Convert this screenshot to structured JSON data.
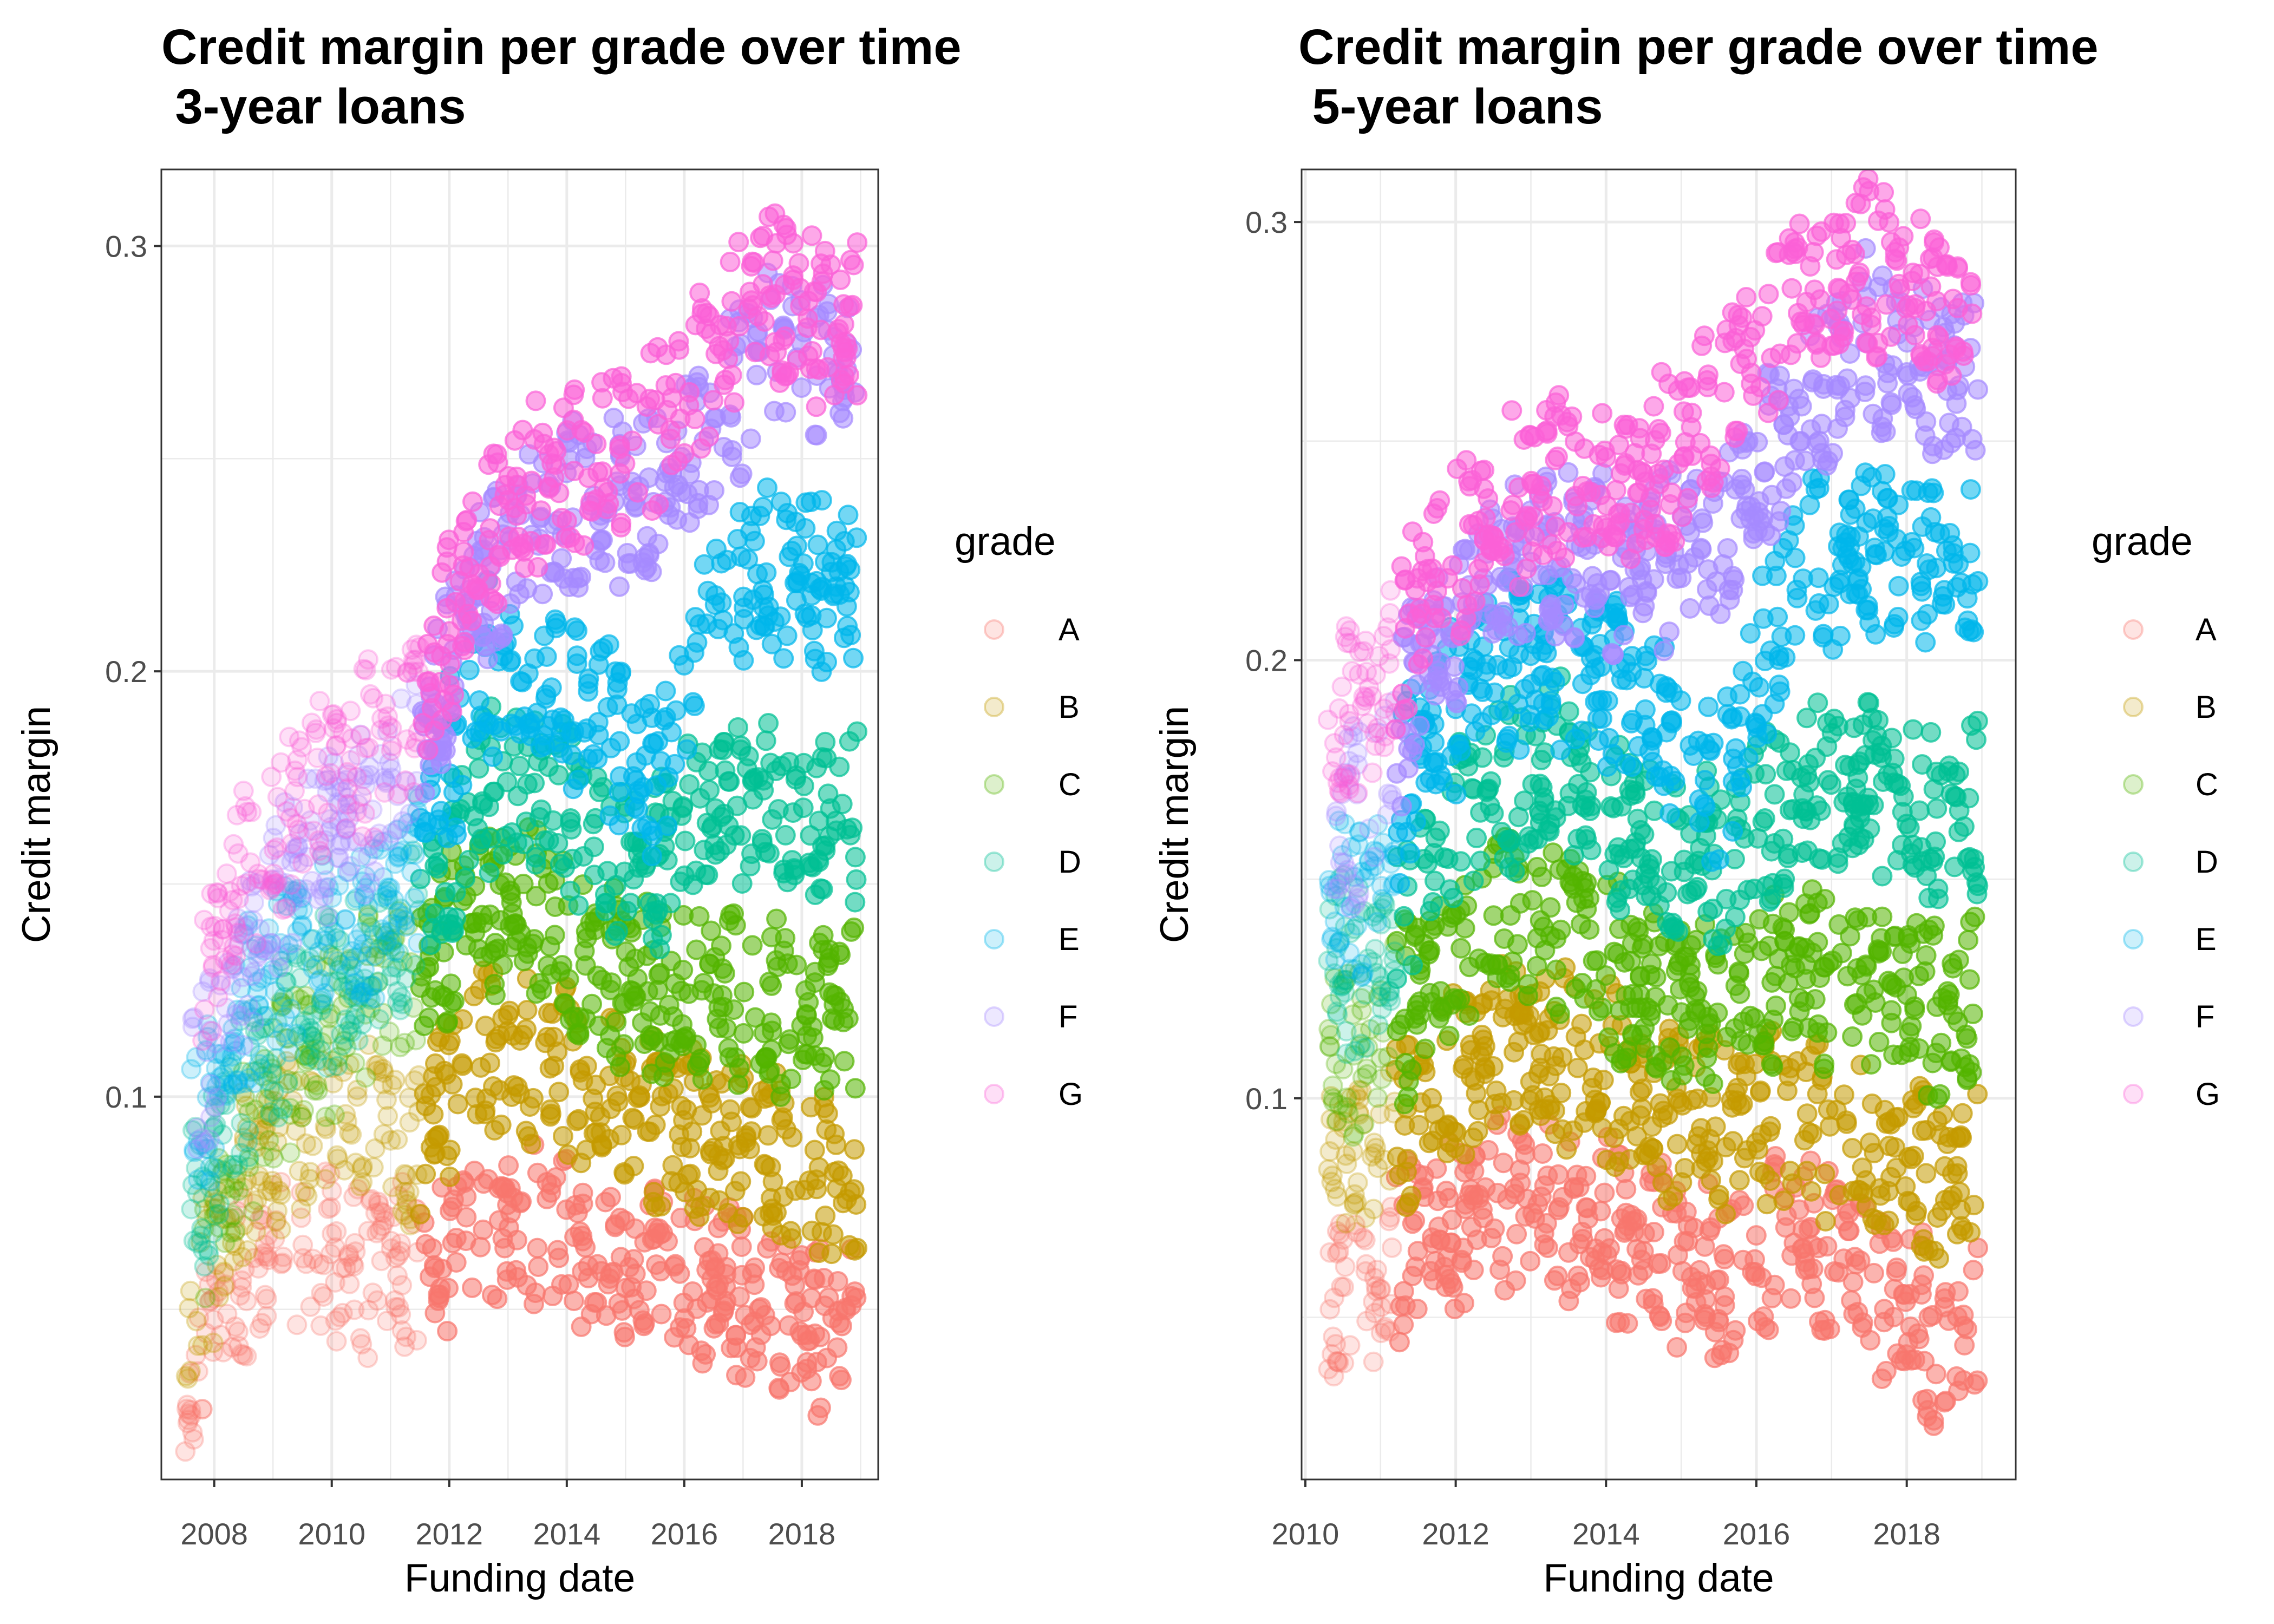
{
  "chart_data": [
    {
      "type": "scatter",
      "title": "Credit margin per grade over time\n 3-year loans",
      "xlabel": "Funding date",
      "ylabel": "Credit margin",
      "xlim": [
        2007.1,
        2019.3
      ],
      "ylim": [
        0.01,
        0.318
      ],
      "x_ticks": [
        2008,
        2010,
        2012,
        2014,
        2016,
        2018
      ],
      "y_ticks": [
        0.1,
        0.2,
        0.3
      ],
      "grid": true,
      "legend_title": "grade",
      "legend_position": "right",
      "series": [
        {
          "name": "A",
          "color": "#F8766D",
          "approx_trend": [
            [
              2007.5,
              0.03
            ],
            [
              2008.5,
              0.06
            ],
            [
              2009.5,
              0.065
            ],
            [
              2010.5,
              0.06
            ],
            [
              2011.5,
              0.06
            ],
            [
              2012.5,
              0.07
            ],
            [
              2013.5,
              0.07
            ],
            [
              2014.5,
              0.06
            ],
            [
              2015.5,
              0.058
            ],
            [
              2016.5,
              0.058
            ],
            [
              2017.5,
              0.05
            ],
            [
              2018.5,
              0.045
            ]
          ]
        },
        {
          "name": "B",
          "color": "#C49A00",
          "approx_trend": [
            [
              2007.5,
              0.045
            ],
            [
              2008.5,
              0.08
            ],
            [
              2009.5,
              0.09
            ],
            [
              2010.5,
              0.095
            ],
            [
              2011.5,
              0.09
            ],
            [
              2012.5,
              0.11
            ],
            [
              2013.5,
              0.11
            ],
            [
              2014.5,
              0.1
            ],
            [
              2015.5,
              0.095
            ],
            [
              2016.5,
              0.09
            ],
            [
              2017.5,
              0.085
            ],
            [
              2018.5,
              0.08
            ]
          ]
        },
        {
          "name": "C",
          "color": "#53B400",
          "approx_trend": [
            [
              2007.8,
              0.06
            ],
            [
              2008.5,
              0.09
            ],
            [
              2009.5,
              0.11
            ],
            [
              2010.5,
              0.12
            ],
            [
              2011.5,
              0.13
            ],
            [
              2012.5,
              0.145
            ],
            [
              2013.5,
              0.145
            ],
            [
              2014.5,
              0.13
            ],
            [
              2015.5,
              0.125
            ],
            [
              2016.5,
              0.125
            ],
            [
              2017.5,
              0.12
            ],
            [
              2018.5,
              0.12
            ]
          ]
        },
        {
          "name": "D",
          "color": "#00C094",
          "approx_trend": [
            [
              2007.6,
              0.075
            ],
            [
              2008.5,
              0.1
            ],
            [
              2009.5,
              0.12
            ],
            [
              2010.5,
              0.13
            ],
            [
              2011.5,
              0.14
            ],
            [
              2012.5,
              0.17
            ],
            [
              2013.5,
              0.175
            ],
            [
              2014.5,
              0.16
            ],
            [
              2015.5,
              0.155
            ],
            [
              2016.5,
              0.17
            ],
            [
              2017.5,
              0.17
            ],
            [
              2018.5,
              0.165
            ]
          ]
        },
        {
          "name": "E",
          "color": "#00B6EB",
          "approx_trend": [
            [
              2007.6,
              0.09
            ],
            [
              2008.5,
              0.12
            ],
            [
              2009.5,
              0.135
            ],
            [
              2010.5,
              0.14
            ],
            [
              2011.5,
              0.155
            ],
            [
              2012.5,
              0.2
            ],
            [
              2013.5,
              0.2
            ],
            [
              2014.5,
              0.19
            ],
            [
              2015.5,
              0.17
            ],
            [
              2016.5,
              0.22
            ],
            [
              2017.5,
              0.225
            ],
            [
              2018.5,
              0.22
            ]
          ]
        },
        {
          "name": "F",
          "color": "#A58AFF",
          "approx_trend": [
            [
              2007.6,
              0.1
            ],
            [
              2008.5,
              0.13
            ],
            [
              2009.5,
              0.16
            ],
            [
              2010.5,
              0.165
            ],
            [
              2011.5,
              0.18
            ],
            [
              2012.5,
              0.22
            ],
            [
              2013.5,
              0.235
            ],
            [
              2014.5,
              0.24
            ],
            [
              2015.5,
              0.24
            ],
            [
              2016.5,
              0.255
            ],
            [
              2017.5,
              0.28
            ],
            [
              2018.5,
              0.27
            ]
          ]
        },
        {
          "name": "G",
          "color": "#FB61D7",
          "approx_trend": [
            [
              2007.8,
              0.13
            ],
            [
              2008.5,
              0.15
            ],
            [
              2009.5,
              0.17
            ],
            [
              2010.5,
              0.18
            ],
            [
              2011.5,
              0.19
            ],
            [
              2012.5,
              0.23
            ],
            [
              2013.5,
              0.245
            ],
            [
              2014.5,
              0.25
            ],
            [
              2015.5,
              0.255
            ],
            [
              2016.5,
              0.275
            ],
            [
              2017.5,
              0.29
            ],
            [
              2018.5,
              0.28
            ]
          ]
        }
      ]
    },
    {
      "type": "scatter",
      "title": "Credit margin per grade over time\n 5-year loans",
      "xlabel": "Funding date",
      "ylabel": "Credit margin",
      "xlim": [
        2009.95,
        2019.45
      ],
      "ylim": [
        0.013,
        0.312
      ],
      "x_ticks": [
        2010,
        2012,
        2014,
        2016,
        2018
      ],
      "y_ticks": [
        0.1,
        0.2,
        0.3
      ],
      "grid": true,
      "legend_title": "grade",
      "legend_position": "right",
      "series": [
        {
          "name": "A",
          "color": "#F8766D",
          "approx_trend": [
            [
              2010.3,
              0.05
            ],
            [
              2011,
              0.055
            ],
            [
              2011.5,
              0.07
            ],
            [
              2012.5,
              0.075
            ],
            [
              2013.5,
              0.075
            ],
            [
              2014.5,
              0.065
            ],
            [
              2015.5,
              0.06
            ],
            [
              2016.5,
              0.07
            ],
            [
              2017.5,
              0.06
            ],
            [
              2018.5,
              0.045
            ]
          ]
        },
        {
          "name": "B",
          "color": "#C49A00",
          "approx_trend": [
            [
              2010.3,
              0.09
            ],
            [
              2011,
              0.085
            ],
            [
              2011.5,
              0.1
            ],
            [
              2012.5,
              0.11
            ],
            [
              2013.5,
              0.11
            ],
            [
              2014.5,
              0.1
            ],
            [
              2015.5,
              0.095
            ],
            [
              2016.5,
              0.095
            ],
            [
              2017.5,
              0.09
            ],
            [
              2018.5,
              0.08
            ]
          ]
        },
        {
          "name": "C",
          "color": "#53B400",
          "approx_trend": [
            [
              2010.3,
              0.11
            ],
            [
              2011,
              0.11
            ],
            [
              2011.5,
              0.125
            ],
            [
              2012.5,
              0.14
            ],
            [
              2013.5,
              0.14
            ],
            [
              2014.5,
              0.125
            ],
            [
              2015.5,
              0.12
            ],
            [
              2016.5,
              0.13
            ],
            [
              2017.5,
              0.125
            ],
            [
              2018.5,
              0.12
            ]
          ]
        },
        {
          "name": "D",
          "color": "#00C094",
          "approx_trend": [
            [
              2010.3,
              0.13
            ],
            [
              2011,
              0.13
            ],
            [
              2011.5,
              0.15
            ],
            [
              2012.5,
              0.17
            ],
            [
              2013.5,
              0.175
            ],
            [
              2014.5,
              0.16
            ],
            [
              2015.5,
              0.155
            ],
            [
              2016.5,
              0.17
            ],
            [
              2017.5,
              0.17
            ],
            [
              2018.5,
              0.165
            ]
          ]
        },
        {
          "name": "E",
          "color": "#00B6EB",
          "approx_trend": [
            [
              2010.3,
              0.145
            ],
            [
              2011,
              0.15
            ],
            [
              2011.5,
              0.18
            ],
            [
              2012.5,
              0.2
            ],
            [
              2013.5,
              0.2
            ],
            [
              2014.5,
              0.19
            ],
            [
              2015.5,
              0.17
            ],
            [
              2016.5,
              0.22
            ],
            [
              2017.5,
              0.225
            ],
            [
              2018.5,
              0.22
            ]
          ]
        },
        {
          "name": "F",
          "color": "#A58AFF",
          "approx_trend": [
            [
              2010.3,
              0.16
            ],
            [
              2011,
              0.17
            ],
            [
              2011.5,
              0.2
            ],
            [
              2012.5,
              0.22
            ],
            [
              2013.5,
              0.225
            ],
            [
              2014.5,
              0.22
            ],
            [
              2015.5,
              0.23
            ],
            [
              2016.5,
              0.255
            ],
            [
              2017.5,
              0.275
            ],
            [
              2018.5,
              0.265
            ]
          ]
        },
        {
          "name": "G",
          "color": "#FB61D7",
          "approx_trend": [
            [
              2010.3,
              0.185
            ],
            [
              2011,
              0.19
            ],
            [
              2011.5,
              0.215
            ],
            [
              2012.5,
              0.235
            ],
            [
              2013.5,
              0.24
            ],
            [
              2014.5,
              0.24
            ],
            [
              2015.5,
              0.26
            ],
            [
              2016.5,
              0.285
            ],
            [
              2017.5,
              0.29
            ],
            [
              2018.5,
              0.28
            ]
          ]
        }
      ]
    }
  ]
}
